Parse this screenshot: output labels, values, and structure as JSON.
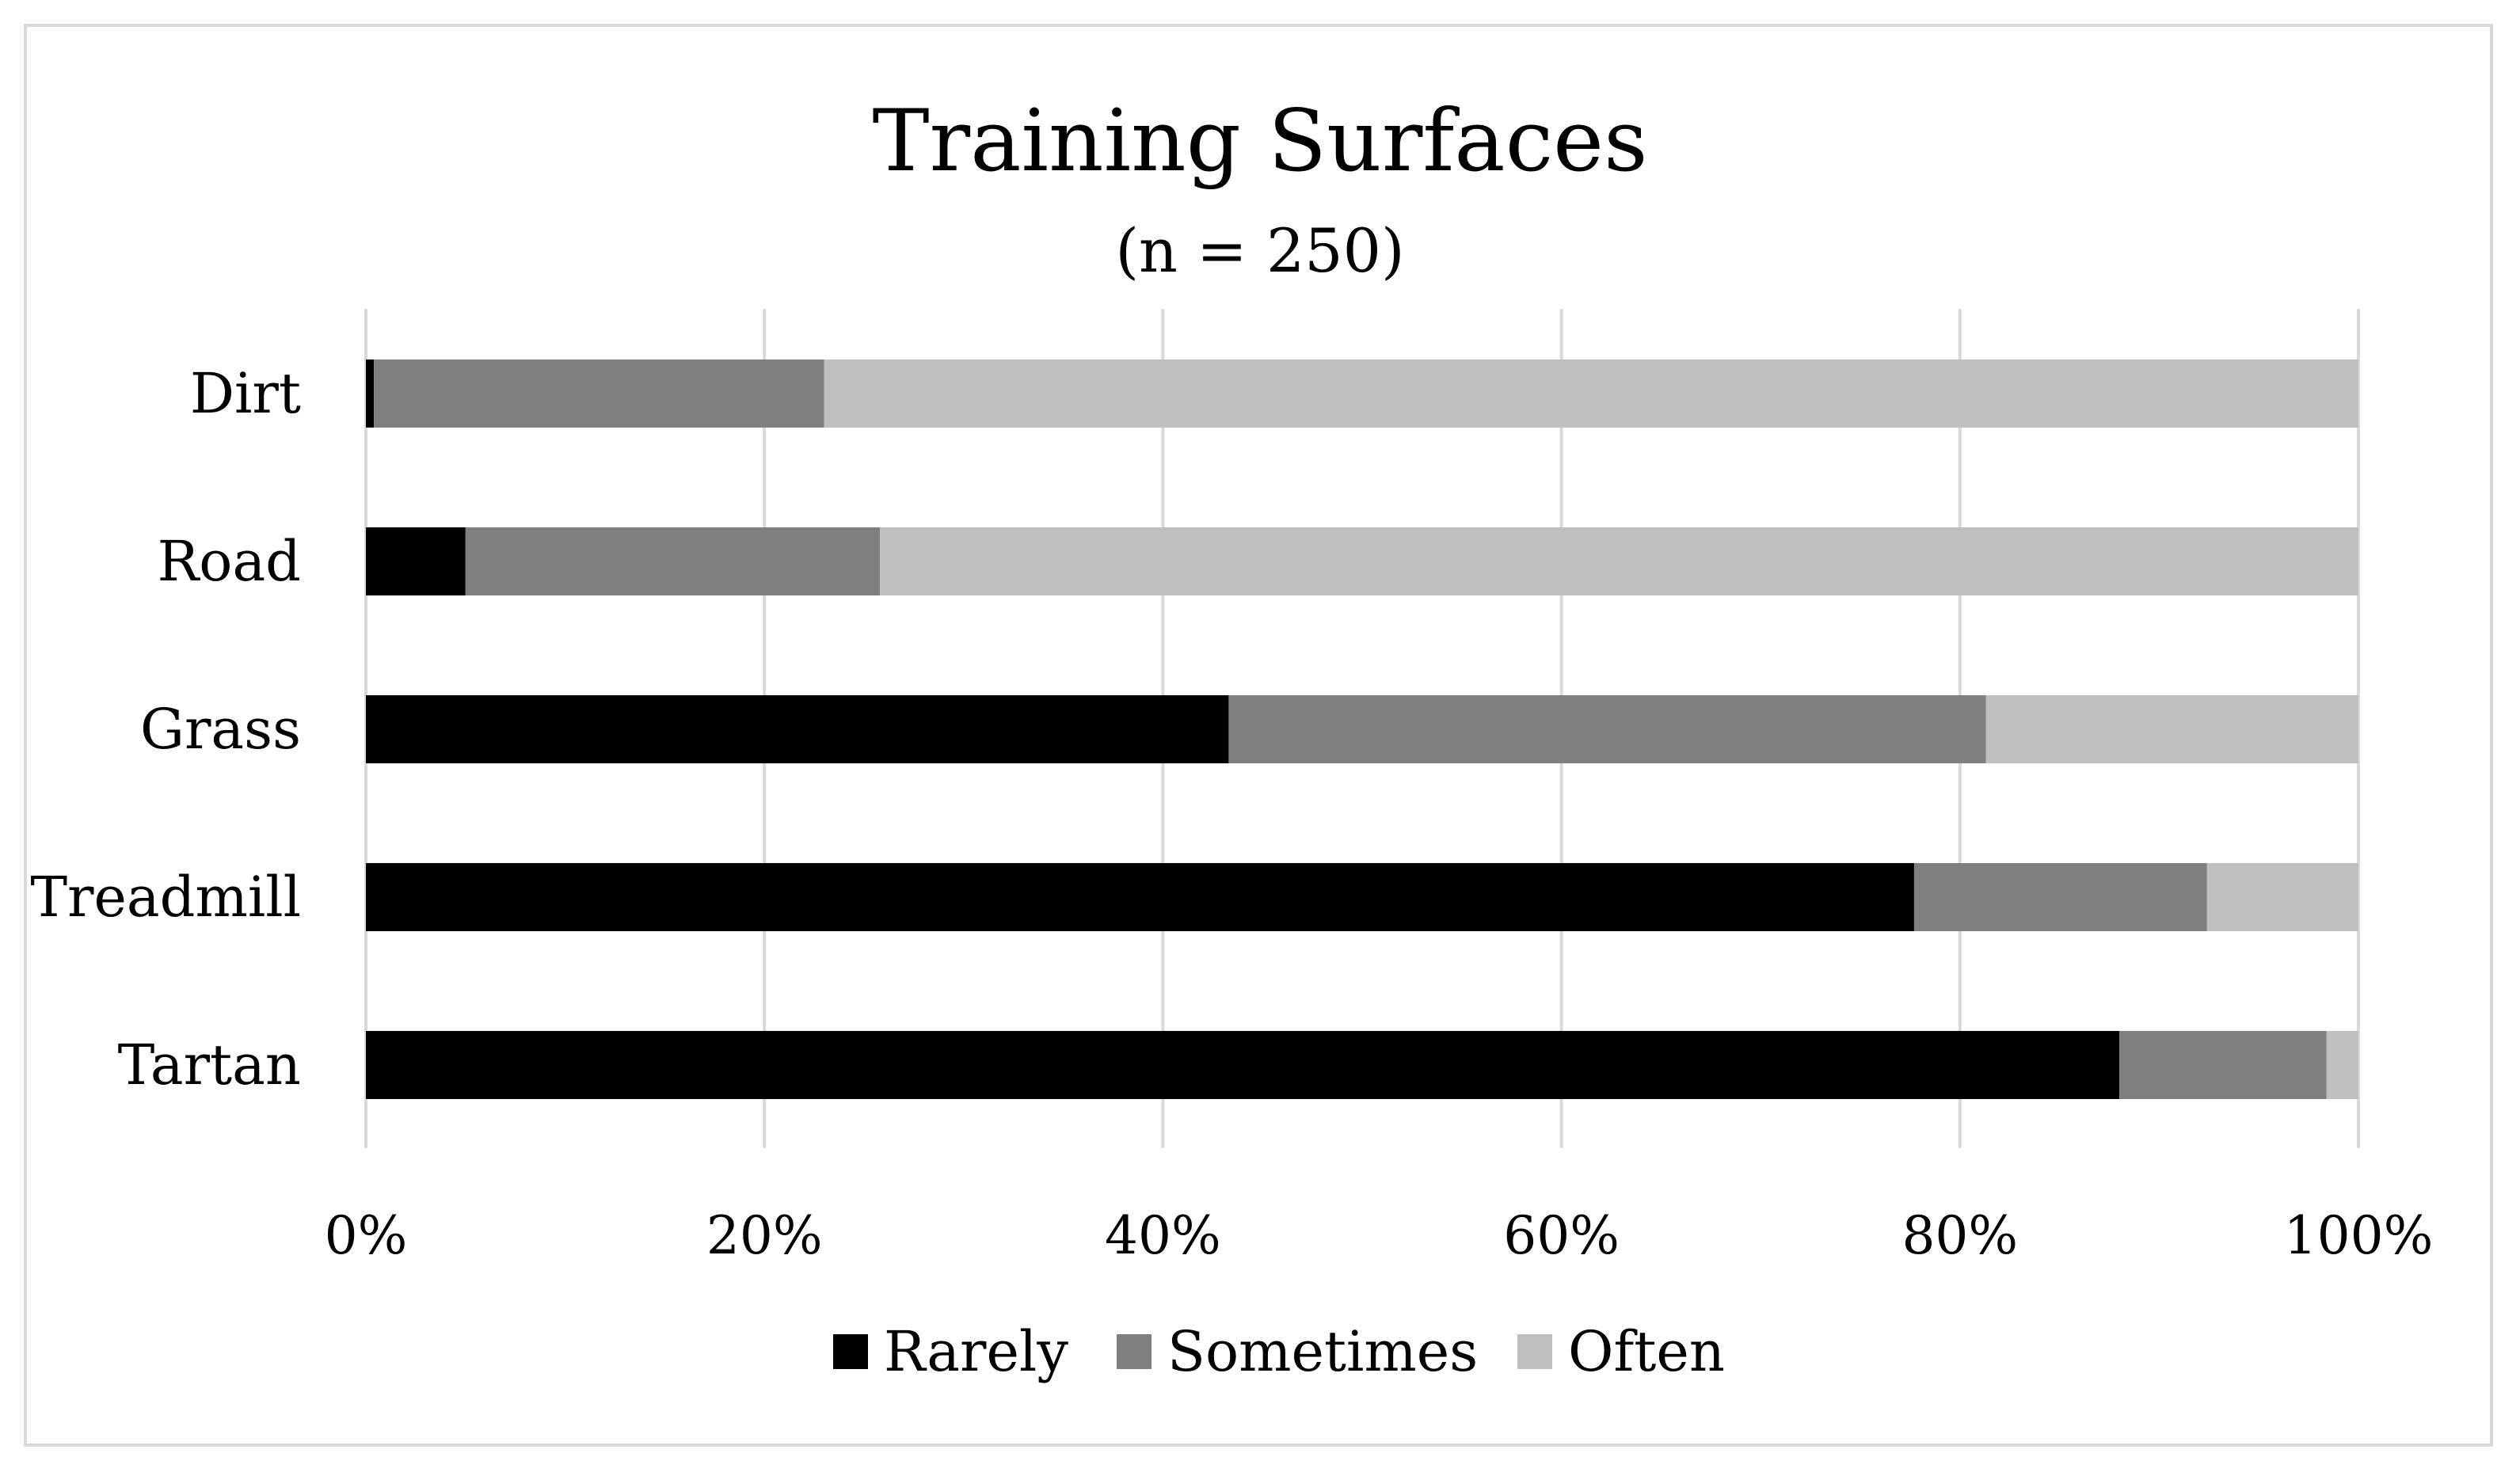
{
  "chart_data": {
    "type": "bar",
    "orientation": "horizontal",
    "stacked": "percent",
    "title": "Training Surfaces",
    "subtitle": "(n = 250)",
    "categories": [
      "Dirt",
      "Road",
      "Grass",
      "Treadmill",
      "Tartan"
    ],
    "series": [
      {
        "name": "Rarely",
        "color": "#000000",
        "values": [
          0.4,
          5.0,
          43.3,
          77.7,
          88.0
        ]
      },
      {
        "name": "Sometimes",
        "color": "#7f7f7f",
        "values": [
          22.6,
          20.8,
          38.0,
          14.7,
          10.4
        ]
      },
      {
        "name": "Often",
        "color": "#bfbfbf",
        "values": [
          77.0,
          74.2,
          18.7,
          7.6,
          1.6
        ]
      }
    ],
    "xlim": [
      0,
      100
    ],
    "x_ticks": [
      "0%",
      "20%",
      "40%",
      "60%",
      "80%",
      "100%"
    ],
    "x_tick_values": [
      0,
      20,
      40,
      60,
      80,
      100
    ],
    "grid": "vertical",
    "legend_position": "bottom"
  }
}
